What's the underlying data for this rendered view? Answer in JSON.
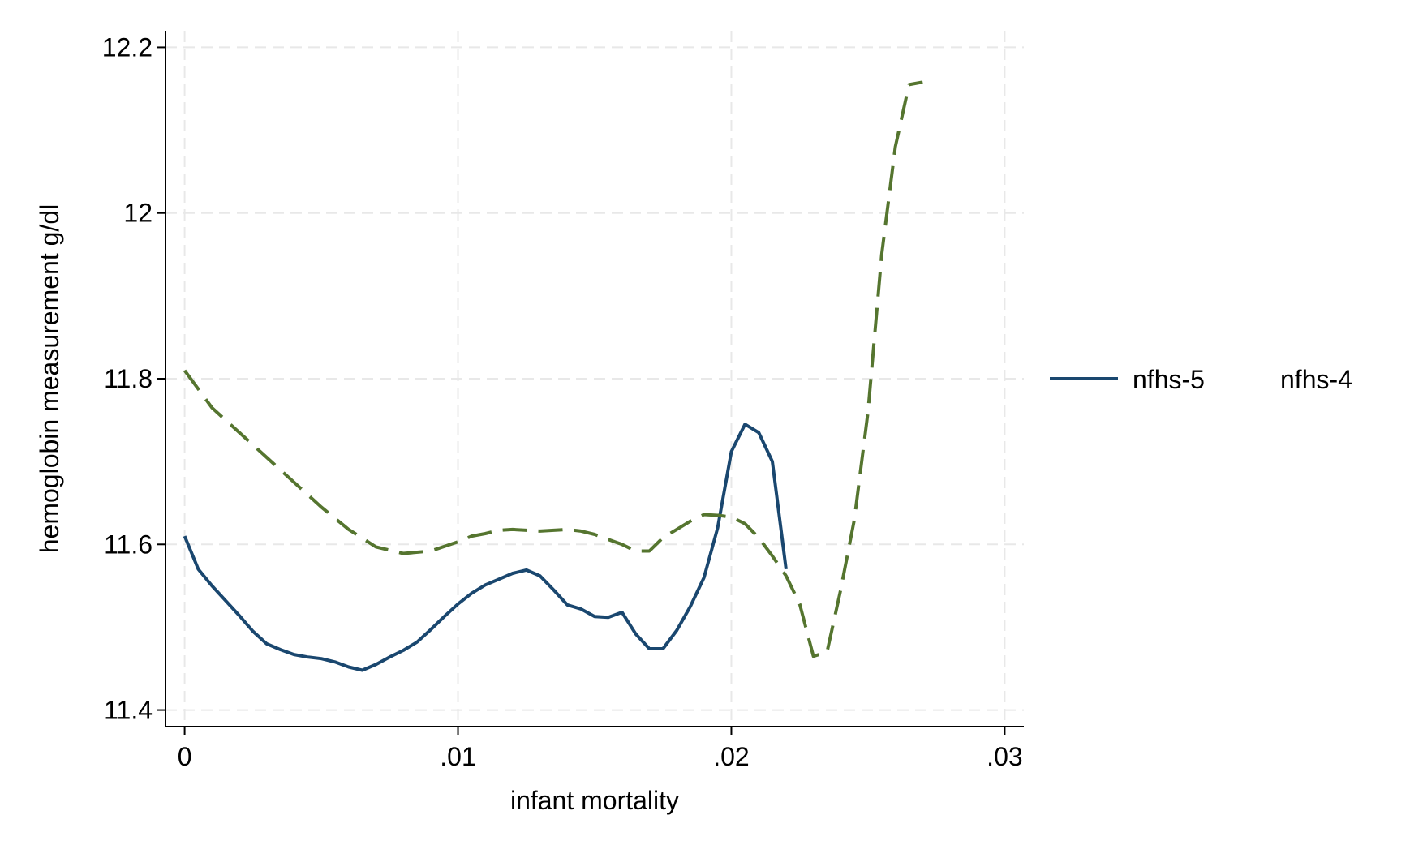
{
  "chart_data": {
    "type": "line",
    "title": "",
    "xlabel": "infant mortality",
    "ylabel": "hemoglobin measurement g/dl",
    "xlim": [
      -0.0007,
      0.0307
    ],
    "ylim": [
      11.38,
      12.22
    ],
    "xticks": [
      0,
      0.01,
      0.02,
      0.03
    ],
    "xtick_labels": [
      "0",
      ".01",
      ".02",
      ".03"
    ],
    "yticks": [
      11.4,
      11.6,
      11.8,
      12.0,
      12.2
    ],
    "ytick_labels": [
      "11.4",
      "11.6",
      "11.8",
      "12",
      "12.2"
    ],
    "grid": true,
    "legend_position": "right",
    "series": [
      {
        "name": "nfhs-5",
        "color": "#1a476f",
        "style": "solid",
        "x": [
          0,
          0.0005,
          0.001,
          0.0015,
          0.002,
          0.0025,
          0.003,
          0.0035,
          0.004,
          0.0045,
          0.005,
          0.0055,
          0.006,
          0.0065,
          0.007,
          0.0075,
          0.008,
          0.0085,
          0.009,
          0.0095,
          0.01,
          0.0105,
          0.011,
          0.0115,
          0.012,
          0.0125,
          0.013,
          0.0135,
          0.014,
          0.0145,
          0.015,
          0.0155,
          0.016,
          0.0165,
          0.017,
          0.0175,
          0.018,
          0.0185,
          0.019,
          0.0195,
          0.02,
          0.0205,
          0.021,
          0.0215,
          0.022
        ],
        "y": [
          11.61,
          11.57,
          11.55,
          11.532,
          11.514,
          11.495,
          11.48,
          11.473,
          11.467,
          11.464,
          11.462,
          11.458,
          11.452,
          11.448,
          11.455,
          11.464,
          11.472,
          11.482,
          11.497,
          11.513,
          11.528,
          11.541,
          11.551,
          11.558,
          11.565,
          11.569,
          11.562,
          11.545,
          11.527,
          11.522,
          11.513,
          11.512,
          11.518,
          11.492,
          11.474,
          11.474,
          11.496,
          11.525,
          11.56,
          11.62,
          11.712,
          11.745,
          11.735,
          11.7,
          11.57
        ]
      },
      {
        "name": "nfhs-4",
        "color": "#55752f",
        "style": "dashed",
        "x": [
          0,
          0.001,
          0.002,
          0.003,
          0.004,
          0.005,
          0.006,
          0.007,
          0.008,
          0.009,
          0.01,
          0.0105,
          0.011,
          0.0115,
          0.012,
          0.0125,
          0.013,
          0.0135,
          0.014,
          0.0145,
          0.015,
          0.0155,
          0.016,
          0.0165,
          0.017,
          0.0175,
          0.018,
          0.0185,
          0.019,
          0.0195,
          0.02,
          0.0205,
          0.021,
          0.0215,
          0.022,
          0.0225,
          0.023,
          0.0235,
          0.024,
          0.0245,
          0.025,
          0.0255,
          0.026,
          0.0265,
          0.027
        ],
        "y": [
          11.81,
          11.765,
          11.735,
          11.705,
          11.675,
          11.645,
          11.618,
          11.597,
          11.589,
          11.592,
          11.603,
          11.61,
          11.613,
          11.617,
          11.618,
          11.617,
          11.616,
          11.617,
          11.618,
          11.616,
          11.612,
          11.606,
          11.6,
          11.592,
          11.592,
          11.608,
          11.618,
          11.628,
          11.636,
          11.635,
          11.633,
          11.625,
          11.608,
          11.586,
          11.562,
          11.528,
          11.465,
          11.47,
          11.545,
          11.63,
          11.76,
          11.95,
          12.08,
          12.155,
          12.158
        ]
      }
    ]
  }
}
